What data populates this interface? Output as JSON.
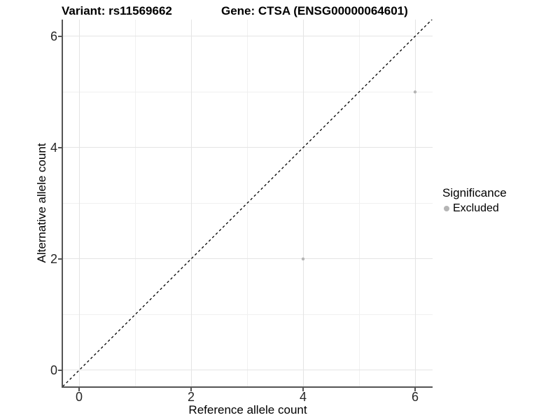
{
  "figure": {
    "title_left": "Variant: rs11569662",
    "title_right": "Gene: CTSA (ENSG00000064601)",
    "xlabel": "Reference allele count",
    "ylabel": "Alternative allele count"
  },
  "legend": {
    "title": "Significance",
    "entries": [
      {
        "label": "Excluded",
        "color": "#b5b5b5"
      }
    ]
  },
  "colors": {
    "axis_line": "#555555",
    "grid_major": "#e4e4e4",
    "grid_minor": "#f0f0f0",
    "tick_text": "#262626",
    "point": "#b5b5b5",
    "identity_line": "#000000"
  },
  "chart_data": {
    "type": "scatter",
    "title_left": "Variant: rs11569662",
    "title_right": "Gene: CTSA (ENSG00000064601)",
    "xlabel": "Reference allele count",
    "ylabel": "Alternative allele count",
    "xlim": [
      -0.2875,
      6.3125
    ],
    "ylim": [
      -0.29,
      6.3
    ],
    "xticks": [
      0,
      2,
      4,
      6
    ],
    "yticks": [
      0,
      2,
      4,
      6
    ],
    "xticks_minor": [
      1,
      3,
      5
    ],
    "yticks_minor": [
      1,
      3,
      5
    ],
    "grid": true,
    "legend_position": "right",
    "series": [
      {
        "name": "Excluded",
        "color": "#b5b5b5",
        "point_radius": 2.2,
        "points": [
          {
            "x": 4,
            "y": 2
          },
          {
            "x": 6,
            "y": 5
          }
        ]
      }
    ],
    "reference_line": {
      "type": "identity y = x",
      "style": "dashed",
      "color": "#000000"
    }
  }
}
